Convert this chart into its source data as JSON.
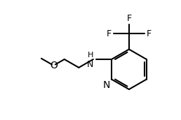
{
  "background_color": "#ffffff",
  "bond_color": "#000000",
  "text_color": "#000000",
  "font_size": 9,
  "line_width": 1.5,
  "figsize": [
    2.58,
    1.72
  ],
  "dpi": 100,
  "xlim": [
    0,
    10
  ],
  "ylim": [
    0,
    6.67
  ]
}
